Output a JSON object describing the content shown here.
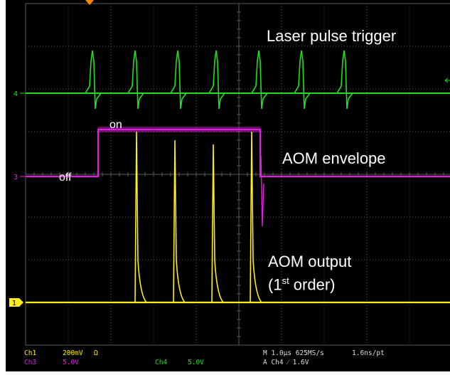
{
  "annotations": {
    "laser_pulse_trigger": "Laser pulse trigger",
    "aom_envelope": "AOM envelope",
    "aom_output_line1": "AOM output",
    "aom_output_line2_prefix": "(1",
    "aom_output_line2_sup": "st",
    "aom_output_line2_suffix": " order)",
    "on": "on",
    "off": "off"
  },
  "channel_markers": {
    "ch4": "4",
    "ch3": "3",
    "ch1": "1"
  },
  "status": {
    "ch1_label": "Ch1",
    "ch1_scale": "200mV",
    "ch1_coupling": "Ω",
    "ch3_label": "Ch3",
    "ch3_scale": "5.0V",
    "ch4_label": "Ch4",
    "ch4_scale": "5.0V",
    "timebase": "M 1.0µs 625MS/s",
    "record": "1.6ns/pt",
    "trigger": "A  Ch4  ⁄  1.6V"
  },
  "colors": {
    "ch4_trace": "#22dd22",
    "ch3_trace": "#e020e0",
    "ch1_trace": "#ffee11",
    "grid": "#5a5a5a",
    "trigger_marker": "#ff8800"
  },
  "chart_data": {
    "type": "line",
    "time_per_division_us": 1.0,
    "divisions": {
      "horizontal": 10,
      "vertical": 8
    },
    "series": [
      {
        "channel": "Ch4",
        "volts_per_division": 5.0,
        "pulse_times_div": [
          1.6,
          2.6,
          3.6,
          4.5,
          5.5,
          6.5,
          7.5
        ]
      },
      {
        "channel": "Ch3",
        "volts_per_division": 5.0,
        "levels": [
          "off",
          "on",
          "off"
        ],
        "transitions_div": [
          1.7,
          5.5
        ]
      },
      {
        "channel": "Ch1",
        "volts_per_division": 0.2,
        "pulse_times_div": [
          2.6,
          3.5,
          4.4,
          5.3
        ],
        "pulse_amplitude_div": [
          4.0,
          3.8,
          3.7,
          4.0
        ]
      }
    ]
  }
}
